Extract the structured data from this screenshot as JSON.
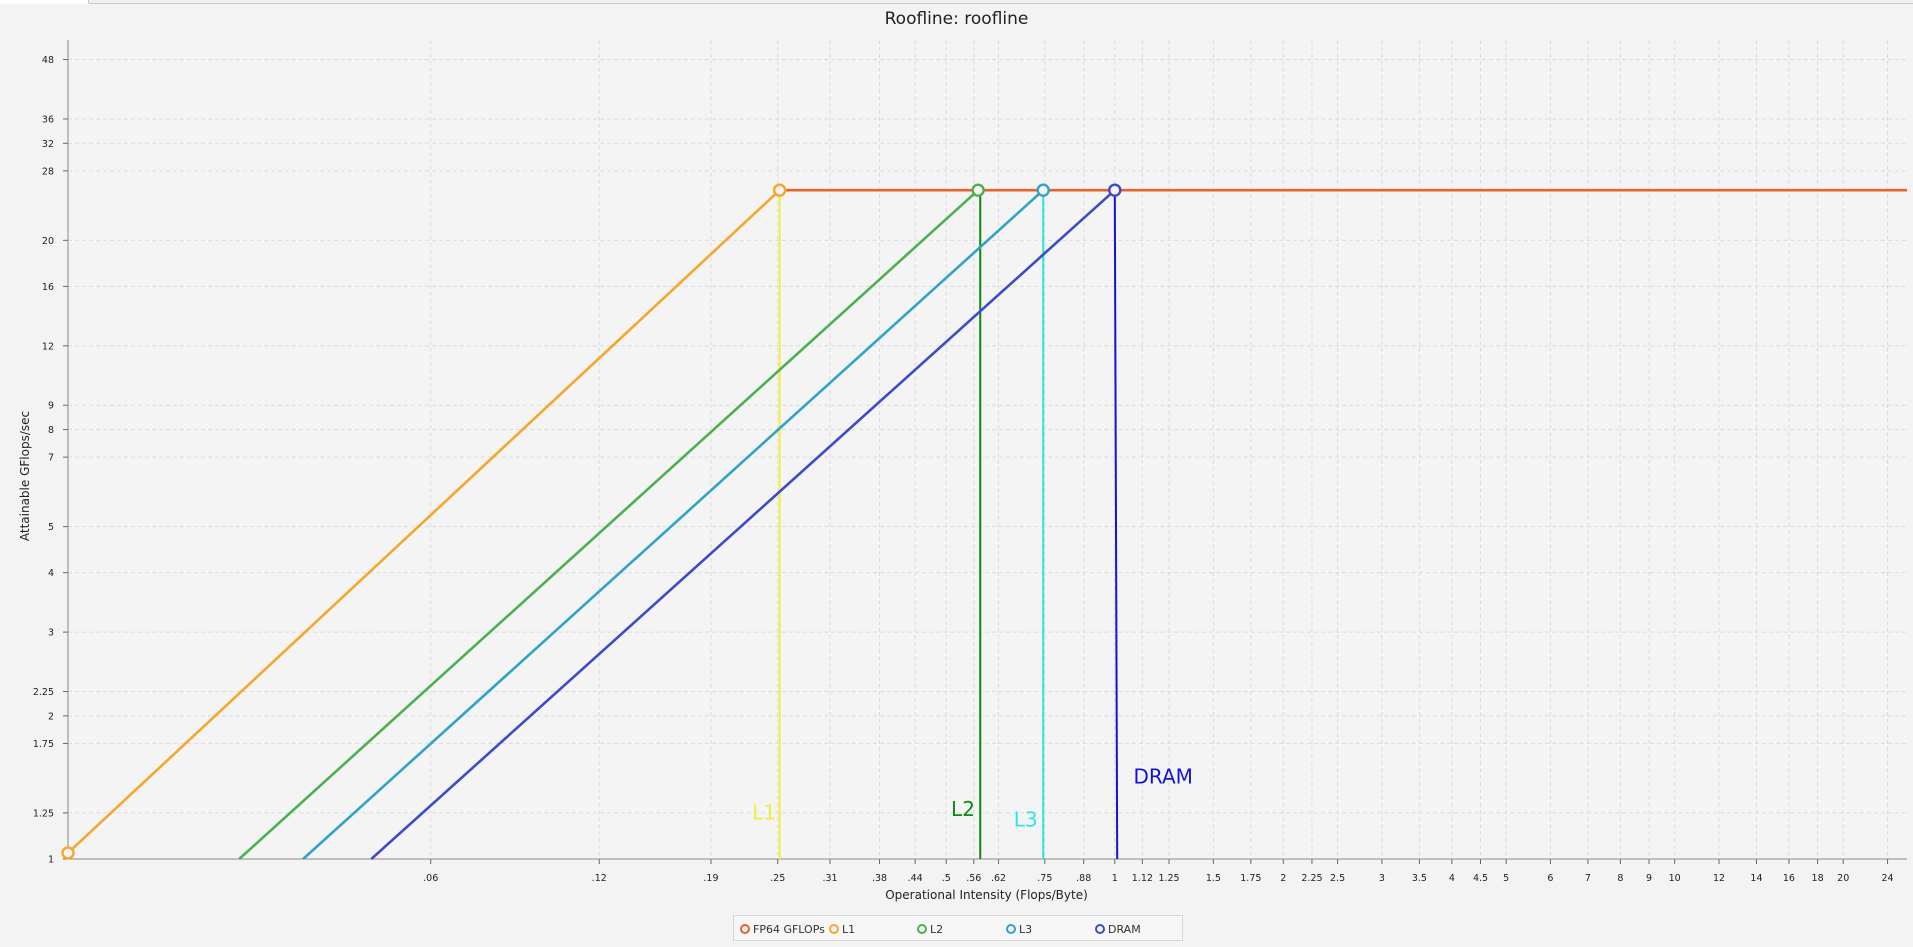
{
  "chart_data": {
    "type": "line",
    "title": "Roofline: roofline",
    "xlabel": "Operational Intensity (Flops/Byte)",
    "ylabel": "Attainable GFlops/sec",
    "x_scale": "log",
    "y_scale": "log",
    "xlim": [
      0.0135,
      26
    ],
    "ylim": [
      1,
      52
    ],
    "grid": true,
    "legend_position": "bottom-center",
    "x_ticks": [
      ".06",
      ".12",
      ".19",
      ".25",
      ".31",
      ".38",
      ".44",
      ".5",
      ".56",
      ".62",
      ".75",
      ".88",
      "1",
      "1.12",
      "1.25",
      "1.5",
      "1.75",
      "2",
      "2.25",
      "2.5",
      "3",
      "3.5",
      "4",
      "4.5",
      "5",
      "6",
      "7",
      "8",
      "9",
      "10",
      "12",
      "14",
      "16",
      "18",
      "20",
      "24"
    ],
    "x_tick_values": [
      0.06,
      0.12,
      0.19,
      0.25,
      0.31,
      0.38,
      0.44,
      0.5,
      0.56,
      0.62,
      0.75,
      0.88,
      1,
      1.12,
      1.25,
      1.5,
      1.75,
      2,
      2.25,
      2.5,
      3,
      3.5,
      4,
      4.5,
      5,
      6,
      7,
      8,
      9,
      10,
      12,
      14,
      16,
      18,
      20,
      24
    ],
    "y_ticks": [
      "1",
      "1.25",
      "1.75",
      "2",
      "2.25",
      "3",
      "4",
      "5",
      "7",
      "8",
      "9",
      "12",
      "16",
      "20",
      "28",
      "32",
      "36",
      "48"
    ],
    "y_tick_values": [
      1,
      1.25,
      1.75,
      2,
      2.25,
      3,
      4,
      5,
      7,
      8,
      9,
      12,
      16,
      20,
      28,
      32,
      36,
      48
    ],
    "series": [
      {
        "name": "FP64 GFLOPs",
        "color": "#e8632c",
        "points": [
          [
            0.252,
            25.5
          ],
          [
            26,
            25.5
          ]
        ],
        "marker_at": []
      },
      {
        "name": "L1",
        "color": "#f4a72a",
        "points": [
          [
            0.0135,
            1.03
          ],
          [
            0.252,
            25.5
          ]
        ],
        "marker_at": [
          [
            0.0135,
            1.03
          ],
          [
            0.252,
            25.5
          ]
        ]
      },
      {
        "name": "L2",
        "color": "#4cb050",
        "points": [
          [
            0.0273,
            1.0
          ],
          [
            0.57,
            25.5
          ]
        ],
        "marker_at": [
          [
            0.57,
            25.5
          ]
        ]
      },
      {
        "name": "L3",
        "color": "#32a3c8",
        "points": [
          [
            0.0355,
            1.0
          ],
          [
            0.745,
            25.5
          ]
        ],
        "marker_at": [
          [
            0.745,
            25.5
          ]
        ]
      },
      {
        "name": "DRAM",
        "color": "#3f4bc6",
        "points": [
          [
            0.047,
            1.0
          ],
          [
            1.0,
            25.5
          ]
        ],
        "marker_at": [
          [
            1.0,
            25.5
          ]
        ]
      }
    ],
    "annotations": [
      {
        "text": "L1",
        "color": "#f2ee3e",
        "x": 0.252,
        "label_x": 0.225,
        "label_y": 1.21
      },
      {
        "text": "L2",
        "color": "#0d8a12",
        "x": 0.575,
        "label_x": 0.51,
        "label_y": 1.23
      },
      {
        "text": "L3",
        "color": "#2fe3e6",
        "x": 0.745,
        "label_x": 0.66,
        "label_y": 1.17
      },
      {
        "text": "DRAM",
        "color": "#1313d6",
        "x": 1.01,
        "x_top": 1.0,
        "label_x": 1.08,
        "label_y": 1.44
      }
    ]
  },
  "legend": [
    {
      "label": "FP64 GFLOPs",
      "color": "#e8632c"
    },
    {
      "label": "L1",
      "color": "#f4a72a"
    },
    {
      "label": "L2",
      "color": "#4cb050"
    },
    {
      "label": "L3",
      "color": "#32a3c8"
    },
    {
      "label": "DRAM",
      "color": "#3f4bc6"
    }
  ]
}
